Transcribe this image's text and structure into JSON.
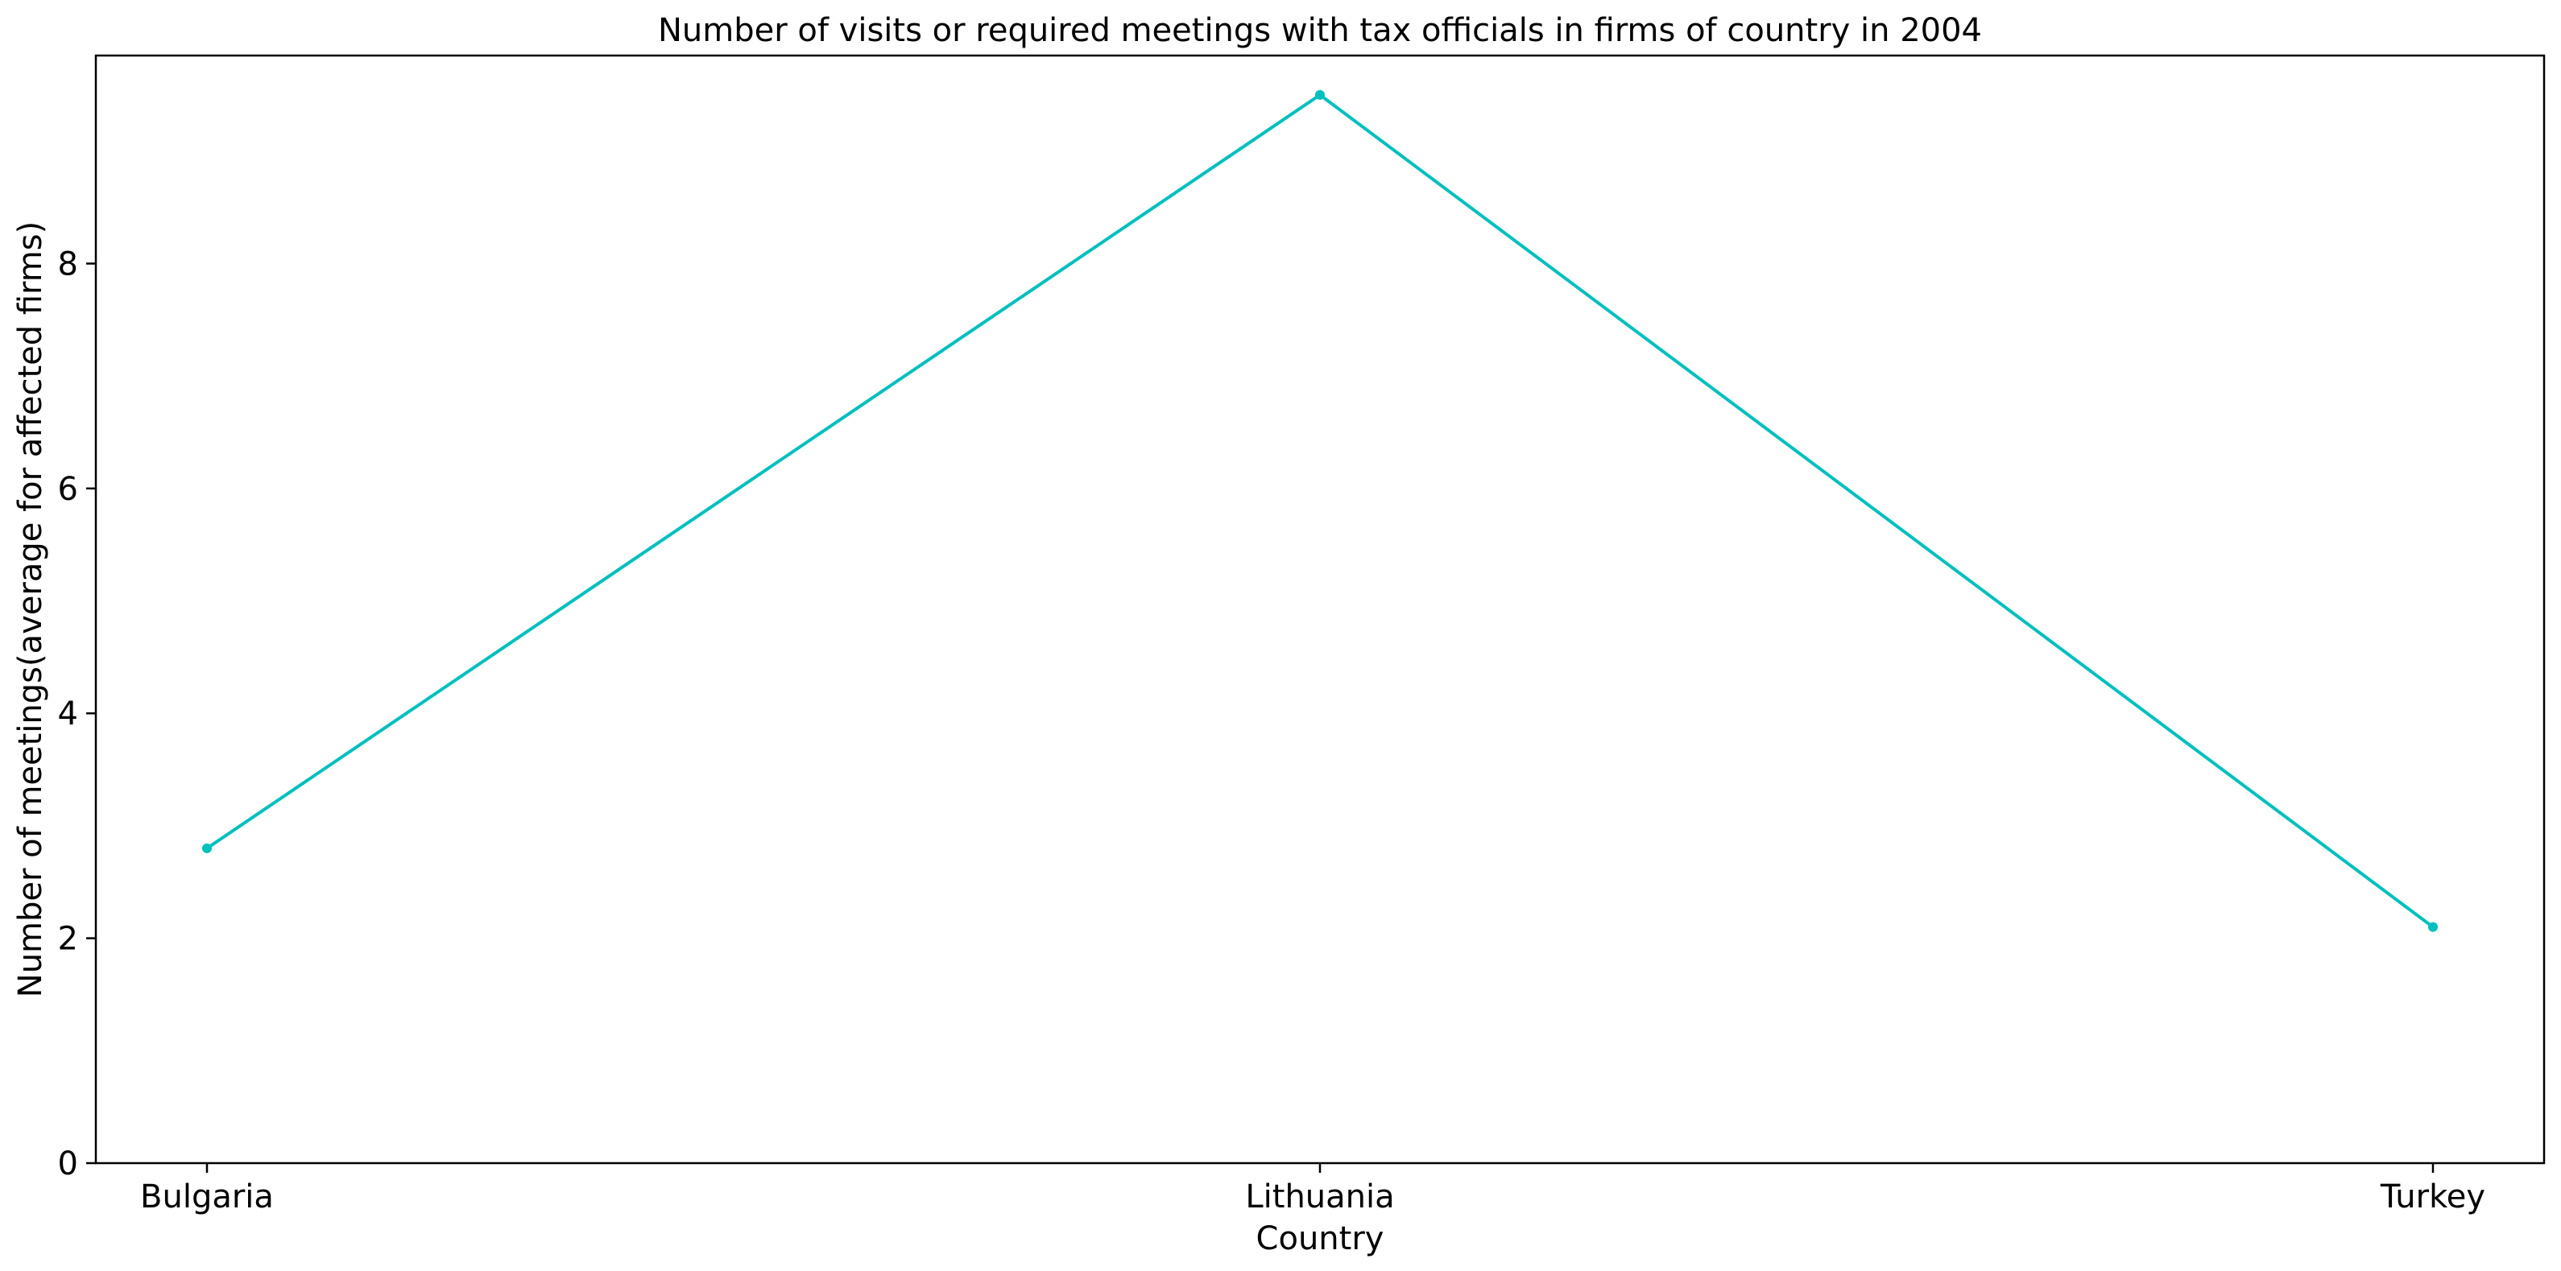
{
  "chart_data": {
    "type": "line",
    "title": "Number of visits or required meetings with tax officials in firms of country in 2004",
    "xlabel": "Country",
    "ylabel": "Number of meetings(average for affected firms)",
    "categories": [
      "Bulgaria",
      "Lithuania",
      "Turkey"
    ],
    "series": [
      {
        "values": [
          2.8,
          9.5,
          2.1
        ],
        "color": "#00bfbf"
      }
    ],
    "ylim": [
      0,
      9.85
    ],
    "yticks": [
      0,
      2,
      4,
      6,
      8
    ],
    "ytick_labels": [
      "0",
      "2",
      "4",
      "6",
      "8"
    ],
    "grid": false,
    "legend": "none"
  }
}
